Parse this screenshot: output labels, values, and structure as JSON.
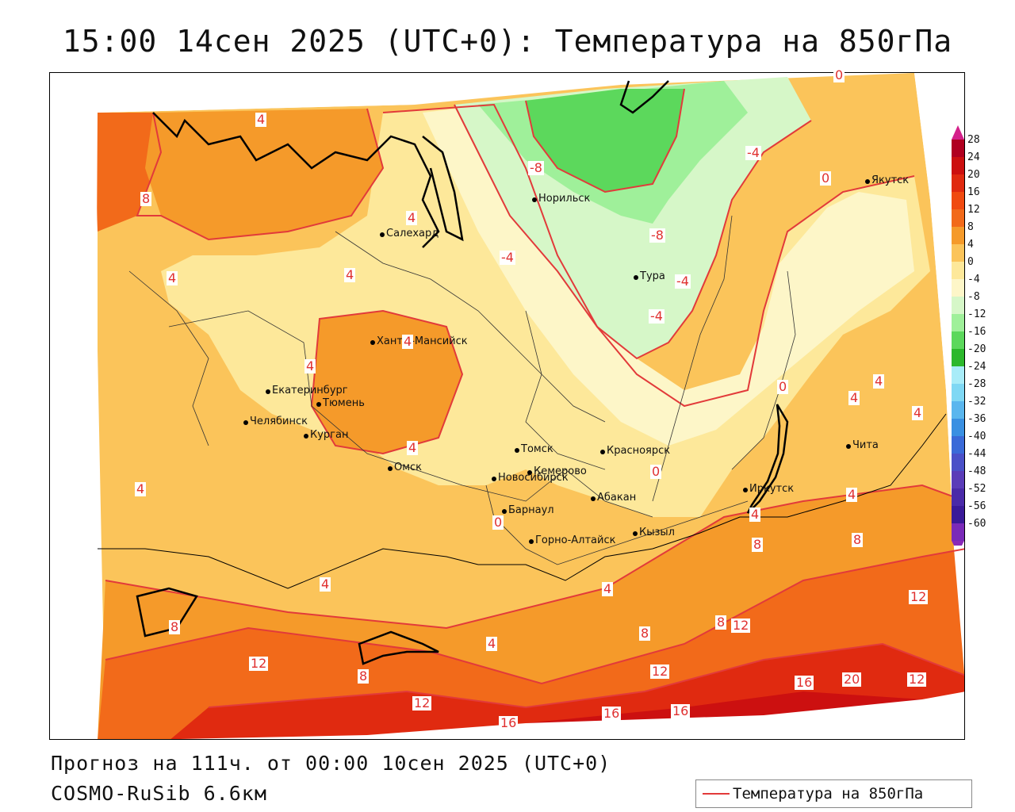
{
  "title": "15:00 14сен 2025 (UTC+0): Температура на 850гПа",
  "footer": {
    "forecast": "Прогноз на 111ч. от 00:00 10сен 2025 (UTC+0)",
    "model": "COSMO-RuSib 6.6км"
  },
  "legend": {
    "label": "Температура на 850гПа",
    "color": "#e23a3a"
  },
  "colorbar": {
    "labels": [
      "28",
      "24",
      "20",
      "16",
      "12",
      "8",
      "4",
      "0",
      "-4",
      "-8",
      "-12",
      "-16",
      "-20",
      "-24",
      "-28",
      "-32",
      "-36",
      "-40",
      "-44",
      "-48",
      "-52",
      "-56",
      "-60"
    ],
    "colors": [
      "#b00020",
      "#cc1010",
      "#e02a10",
      "#f04a10",
      "#f26a1a",
      "#f59a2a",
      "#fbc45a",
      "#fde89a",
      "#fdf6c8",
      "#d6f7c8",
      "#9ff09a",
      "#5cd85c",
      "#2cb82c",
      "#a8ecf8",
      "#7fd8f4",
      "#5ab6ee",
      "#3a90e2",
      "#3a6ad8",
      "#4a50c8",
      "#5a3cb8",
      "#4a2aa8",
      "#3a1a98",
      "#7a2ab8"
    ]
  },
  "cities": [
    {
      "name": "Якутск"
    },
    {
      "name": "Норильск"
    },
    {
      "name": "Салехард"
    },
    {
      "name": "Тура"
    },
    {
      "name": "Ханты-Мансийск"
    },
    {
      "name": "Екатеринбург"
    },
    {
      "name": "Тюмень"
    },
    {
      "name": "Челябинск"
    },
    {
      "name": "Курган"
    },
    {
      "name": "Омск"
    },
    {
      "name": "Новосибирск"
    },
    {
      "name": "Томск"
    },
    {
      "name": "Красноярск"
    },
    {
      "name": "Кемерово"
    },
    {
      "name": "Абакан"
    },
    {
      "name": "Барнаул"
    },
    {
      "name": "Горно-Алтайск"
    },
    {
      "name": "Кызыл"
    },
    {
      "name": "Иркутск"
    },
    {
      "name": "Чита"
    }
  ],
  "isolines": [
    "4",
    "8",
    "4",
    "4",
    "4",
    "4",
    "4",
    "4",
    "-8",
    "-4",
    "-8",
    "-4",
    "-4",
    "0",
    "0",
    "-4",
    "0",
    "0",
    "4",
    "4",
    "4",
    "4",
    "0",
    "4",
    "4",
    "4",
    "4",
    "8",
    "8",
    "8",
    "12",
    "12",
    "8",
    "8",
    "4",
    "8",
    "12",
    "16",
    "12",
    "16",
    "20",
    "12",
    "12",
    "16",
    "16",
    "16",
    "12"
  ]
}
